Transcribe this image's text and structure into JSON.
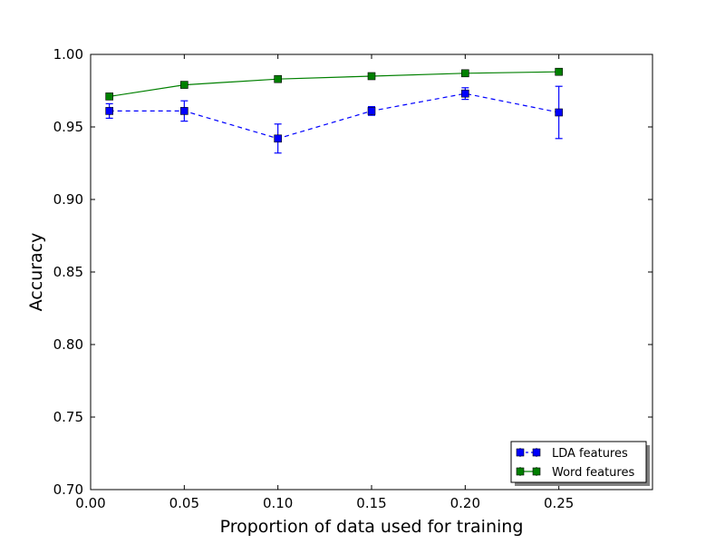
{
  "chart_data": {
    "type": "line",
    "title": "",
    "xlabel": "Proportion of data used for training",
    "ylabel": "Accuracy",
    "xlim": [
      0.0,
      0.3
    ],
    "ylim": [
      0.7,
      1.0
    ],
    "xticks": [
      0.0,
      0.05,
      0.1,
      0.15,
      0.2,
      0.25
    ],
    "xtick_labels": [
      "0.00",
      "0.05",
      "0.10",
      "0.15",
      "0.20",
      "0.25"
    ],
    "yticks": [
      0.7,
      0.75,
      0.8,
      0.85,
      0.9,
      0.95,
      1.0
    ],
    "ytick_labels": [
      "0.70",
      "0.75",
      "0.80",
      "0.85",
      "0.90",
      "0.95",
      "1.00"
    ],
    "grid": false,
    "legend_position": "bottom-right",
    "series": [
      {
        "name": "LDA features",
        "color": "#0000ff",
        "linestyle": "dashed",
        "marker": "square",
        "x": [
          0.01,
          0.05,
          0.1,
          0.15,
          0.2,
          0.25
        ],
        "y": [
          0.961,
          0.961,
          0.942,
          0.961,
          0.973,
          0.96
        ],
        "yerr": [
          0.005,
          0.007,
          0.01,
          0.003,
          0.004,
          0.018
        ]
      },
      {
        "name": "Word features",
        "color": "#008000",
        "linestyle": "solid",
        "marker": "square",
        "x": [
          0.01,
          0.05,
          0.1,
          0.15,
          0.2,
          0.25
        ],
        "y": [
          0.971,
          0.979,
          0.983,
          0.985,
          0.987,
          0.988
        ],
        "yerr": [
          0.001,
          0.001,
          0.001,
          0.001,
          0.001,
          0.001
        ]
      }
    ]
  }
}
